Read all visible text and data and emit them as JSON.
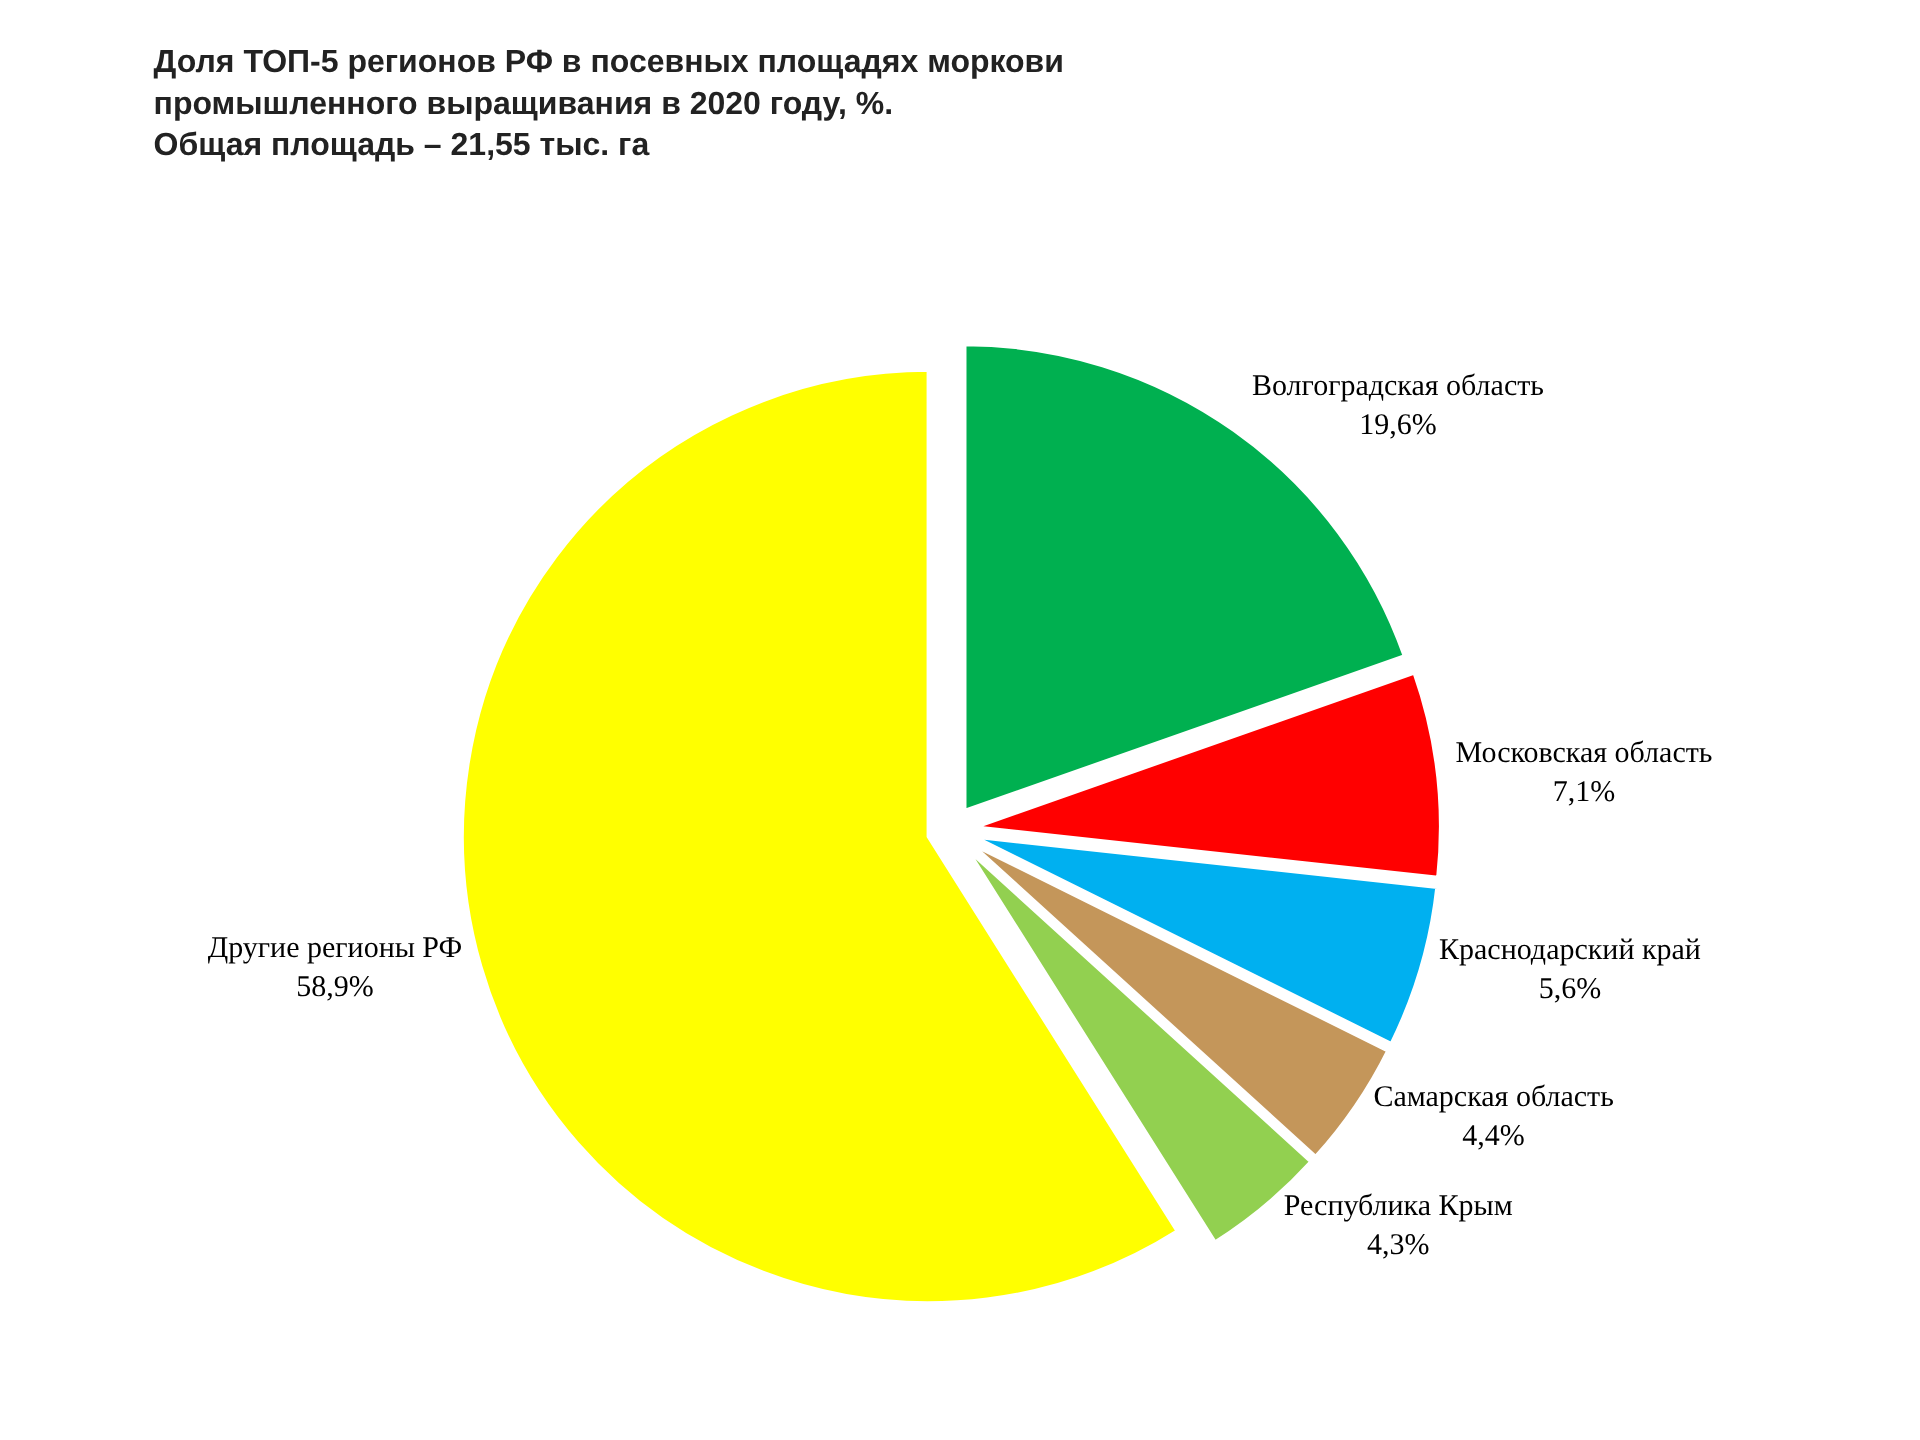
{
  "chart_data": {
    "type": "pie",
    "title": "Доля ТОП-5 регионов РФ в посевных площадях моркови промышленного выращивания в 2020 году, %.",
    "subtitle": "Общая площадь – 21,55 тыс. га",
    "categories": [
      "Волгоградская область",
      "Московская область",
      "Краснодарский край",
      "Самарская область",
      "Республика Крым",
      "Другие регионы РФ"
    ],
    "values": [
      19.6,
      7.1,
      5.6,
      4.4,
      4.3,
      58.9
    ],
    "value_labels": [
      "19,6%",
      "7,1%",
      "5,6%",
      "4,4%",
      "4,3%",
      "58,9%"
    ],
    "colors": [
      "#00b050",
      "#ff0000",
      "#00b0f0",
      "#c4965a",
      "#92d050",
      "#ffff00"
    ],
    "legend": false
  }
}
